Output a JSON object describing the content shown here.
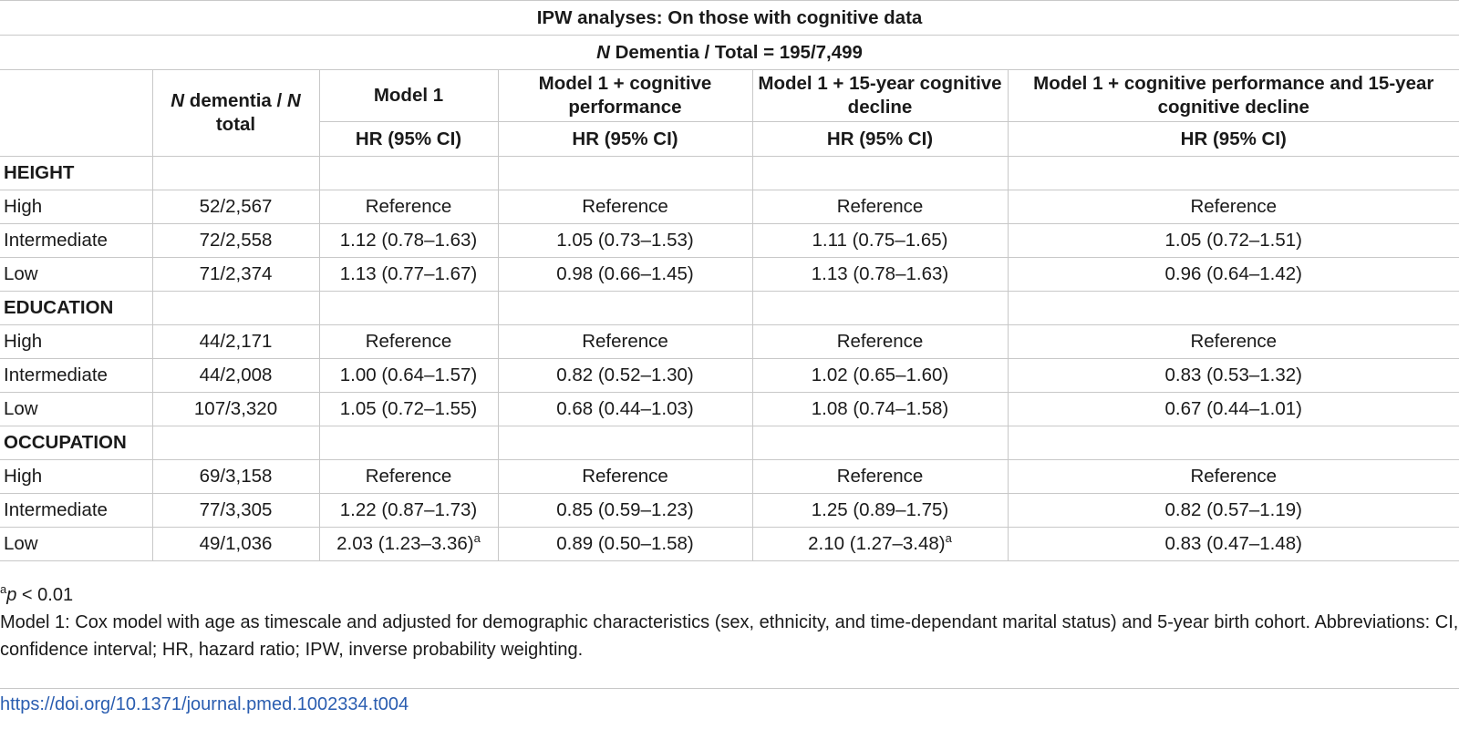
{
  "table": {
    "title": "IPW analyses: On those with cognitive data",
    "subtitle_n": "N",
    "subtitle_rest": " Dementia / Total = 195/7,499",
    "header": {
      "n_col_n1": "N",
      "n_col_mid": " dementia / ",
      "n_col_n2": "N",
      "n_col_tail": " total",
      "model1": "Model 1",
      "model1_cog": "Model 1 + cognitive performance",
      "model1_decline": "Model 1 + 15-year cognitive decline",
      "model1_both": "Model 1 + cognitive performance and 15-year cognitive decline",
      "hr_label": "HR (95% CI)"
    },
    "groups": [
      {
        "name": "HEIGHT",
        "rows": [
          {
            "label": "High",
            "n": "52/2,567",
            "m1": "Reference",
            "m1_sup": "",
            "m2": "Reference",
            "m3": "Reference",
            "m3_sup": "",
            "m4": "Reference"
          },
          {
            "label": "Intermediate",
            "n": "72/2,558",
            "m1": "1.12 (0.78–1.63)",
            "m1_sup": "",
            "m2": "1.05 (0.73–1.53)",
            "m3": "1.11 (0.75–1.65)",
            "m3_sup": "",
            "m4": "1.05 (0.72–1.51)"
          },
          {
            "label": "Low",
            "n": "71/2,374",
            "m1": "1.13 (0.77–1.67)",
            "m1_sup": "",
            "m2": "0.98 (0.66–1.45)",
            "m3": "1.13 (0.78–1.63)",
            "m3_sup": "",
            "m4": "0.96 (0.64–1.42)"
          }
        ]
      },
      {
        "name": "EDUCATION",
        "rows": [
          {
            "label": "High",
            "n": "44/2,171",
            "m1": "Reference",
            "m1_sup": "",
            "m2": "Reference",
            "m3": "Reference",
            "m3_sup": "",
            "m4": "Reference"
          },
          {
            "label": "Intermediate",
            "n": "44/2,008",
            "m1": "1.00 (0.64–1.57)",
            "m1_sup": "",
            "m2": "0.82 (0.52–1.30)",
            "m3": "1.02 (0.65–1.60)",
            "m3_sup": "",
            "m4": "0.83 (0.53–1.32)"
          },
          {
            "label": "Low",
            "n": "107/3,320",
            "m1": "1.05 (0.72–1.55)",
            "m1_sup": "",
            "m2": "0.68 (0.44–1.03)",
            "m3": "1.08 (0.74–1.58)",
            "m3_sup": "",
            "m4": "0.67 (0.44–1.01)"
          }
        ]
      },
      {
        "name": "OCCUPATION",
        "rows": [
          {
            "label": "High",
            "n": "69/3,158",
            "m1": "Reference",
            "m1_sup": "",
            "m2": "Reference",
            "m3": "Reference",
            "m3_sup": "",
            "m4": "Reference"
          },
          {
            "label": "Intermediate",
            "n": "77/3,305",
            "m1": "1.22 (0.87–1.73)",
            "m1_sup": "",
            "m2": "0.85 (0.59–1.23)",
            "m3": "1.25 (0.89–1.75)",
            "m3_sup": "",
            "m4": "0.82 (0.57–1.19)"
          },
          {
            "label": "Low",
            "n": "49/1,036",
            "m1": "2.03 (1.23–3.36)",
            "m1_sup": "a",
            "m2": "0.89 (0.50–1.58)",
            "m3": "2.10 (1.27–3.48)",
            "m3_sup": "a",
            "m4": "0.83 (0.47–1.48)"
          }
        ]
      }
    ]
  },
  "footnotes": {
    "sig_marker": "a",
    "sig_p": "p",
    "sig_rest": " < 0.01",
    "model_note": "Model 1: Cox model with age as timescale and adjusted for demographic characteristics (sex, ethnicity, and time-dependant marital status) and 5-year birth cohort. Abbreviations: CI, confidence interval; HR, hazard ratio; IPW, inverse probability weighting."
  },
  "doi_link": "https://doi.org/10.1371/journal.pmed.1002334.t004",
  "colors": {
    "link": "#2a5db0",
    "rule": "#c8c8c8",
    "text": "#1a1a1a"
  }
}
